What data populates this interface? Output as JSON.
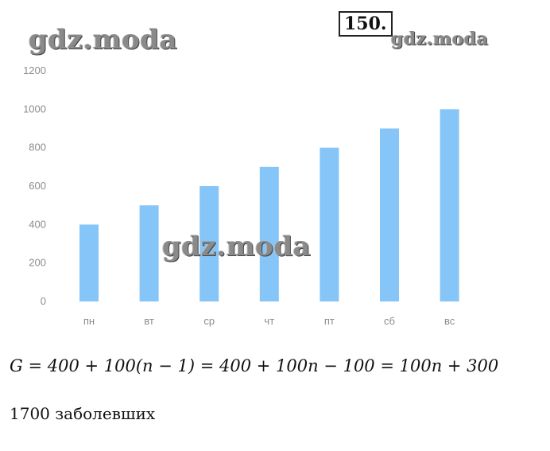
{
  "watermarks": [
    "gdz.moda",
    "gdz.moda",
    "gdz.moda"
  ],
  "problem_number": "150.",
  "chart_data": {
    "type": "bar",
    "categories": [
      "пн",
      "вт",
      "ср",
      "чт",
      "пт",
      "сб",
      "вс"
    ],
    "values": [
      400,
      500,
      600,
      700,
      800,
      900,
      1000
    ],
    "yticks": [
      "0",
      "200",
      "400",
      "600",
      "800",
      "1000",
      "1200"
    ],
    "ylim": [
      0,
      1200
    ],
    "grid": false,
    "bar_color": "#86c5f7"
  },
  "formula": "G = 400 + 100(n − 1) = 400 + 100n − 100 = 100n + 300",
  "answer": "1700 заболевших"
}
